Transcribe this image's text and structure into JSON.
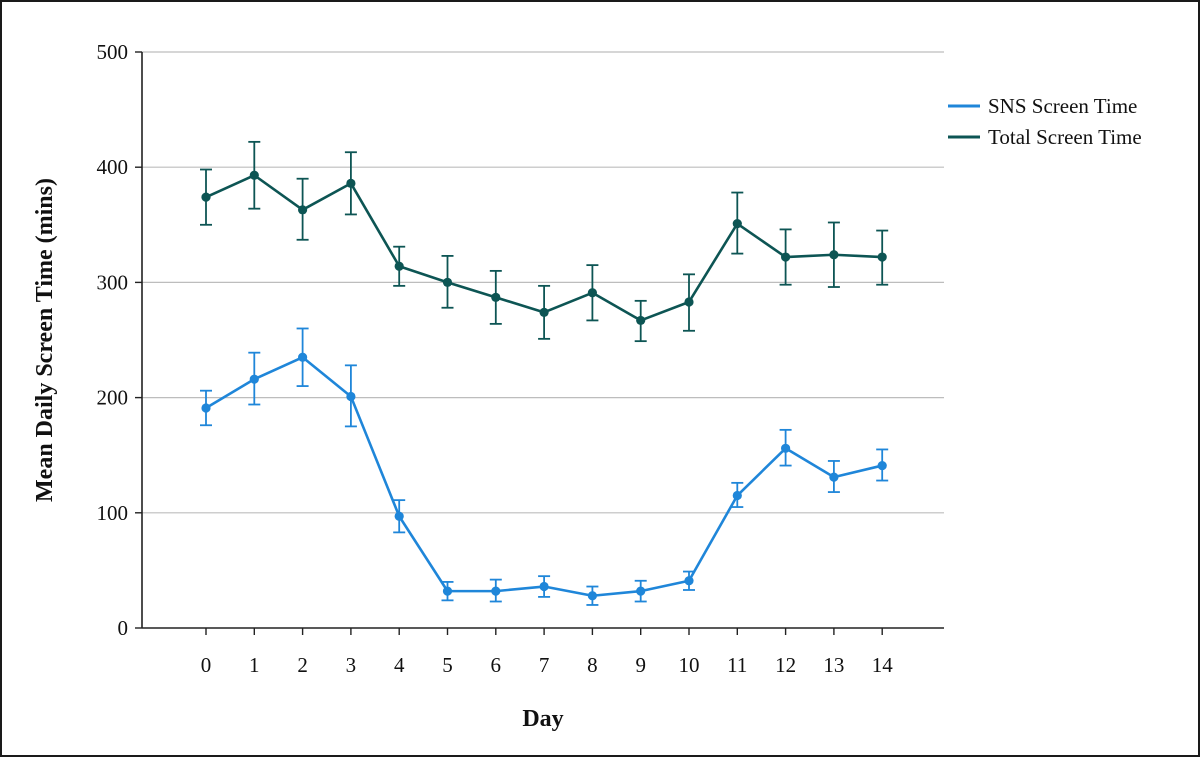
{
  "chart_data": {
    "type": "line",
    "xlabel": "Day",
    "ylabel": "Mean Daily Screen Time (mins)",
    "x": [
      0,
      1,
      2,
      3,
      4,
      5,
      6,
      7,
      8,
      9,
      10,
      11,
      12,
      13,
      14
    ],
    "x_tick_labels": [
      "0",
      "1",
      "2",
      "3",
      "4",
      "5",
      "6",
      "7",
      "8",
      "9",
      "10",
      "11",
      "12",
      "13",
      "14"
    ],
    "ylim": [
      0,
      500
    ],
    "y_ticks": [
      0,
      100,
      200,
      300,
      400,
      500
    ],
    "y_tick_labels": [
      "0",
      "100",
      "200",
      "300",
      "400",
      "500"
    ],
    "grid": "horizontal",
    "legend_position": "top-right",
    "series": [
      {
        "name": "SNS Screen Time",
        "color": "#1f86d9",
        "values": [
          191,
          216,
          235,
          201,
          97,
          32,
          32,
          36,
          28,
          32,
          41,
          115,
          156,
          131,
          141
        ],
        "error_low": [
          176,
          194,
          210,
          175,
          83,
          24,
          23,
          27,
          20,
          23,
          33,
          105,
          141,
          118,
          128
        ],
        "error_high": [
          206,
          239,
          260,
          228,
          111,
          40,
          42,
          45,
          36,
          41,
          49,
          126,
          172,
          145,
          155
        ]
      },
      {
        "name": "Total Screen Time",
        "color": "#0d5554",
        "values": [
          374,
          393,
          363,
          386,
          314,
          300,
          287,
          274,
          291,
          267,
          283,
          351,
          322,
          324,
          322
        ],
        "error_low": [
          350,
          364,
          337,
          359,
          297,
          278,
          264,
          251,
          267,
          249,
          258,
          325,
          298,
          296,
          298
        ],
        "error_high": [
          398,
          422,
          390,
          413,
          331,
          323,
          310,
          297,
          315,
          284,
          307,
          378,
          346,
          352,
          345
        ]
      }
    ]
  }
}
